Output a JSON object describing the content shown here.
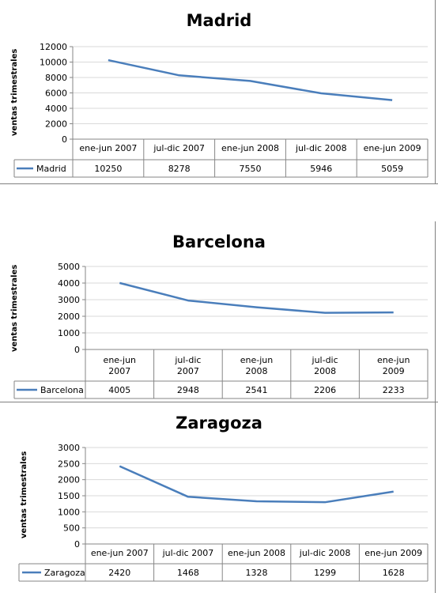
{
  "colors": {
    "line": "#4a7ebb",
    "axis": "#868686",
    "grid": "#d9d9d9"
  },
  "chart_data": [
    {
      "type": "line",
      "title": "Madrid",
      "ylabel": "ventas trimestrales",
      "categories": [
        "ene-jun 2007",
        "jul-dic 2007",
        "ene-jun 2008",
        "jul-dic 2008",
        "ene-jun 2009"
      ],
      "ylim": [
        0,
        12000
      ],
      "yticks": [
        0,
        2000,
        4000,
        6000,
        8000,
        10000,
        12000
      ],
      "series": [
        {
          "name": "Madrid",
          "values": [
            10250,
            8278,
            7550,
            5946,
            5059
          ]
        }
      ],
      "table_values": [
        "10250",
        "8278",
        "7550",
        "5946",
        "5059"
      ]
    },
    {
      "type": "line",
      "title": "Barcelona",
      "ylabel": "ventas trimestrales",
      "categories": [
        "ene-jun 2007",
        "jul-dic 2007",
        "ene-jun 2008",
        "jul-dic 2008",
        "ene-jun 2009"
      ],
      "ylim": [
        0,
        5000
      ],
      "yticks": [
        0,
        1000,
        2000,
        3000,
        4000,
        5000
      ],
      "series": [
        {
          "name": "Barcelona",
          "values": [
            4005,
            2948,
            2541,
            2206,
            2233
          ]
        }
      ],
      "table_values": [
        "4005",
        "2948",
        "2541",
        "2206",
        "2233"
      ]
    },
    {
      "type": "line",
      "title": "Zaragoza",
      "ylabel": "ventas trimestrales",
      "categories": [
        "ene-jun 2007",
        "jul-dic 2007",
        "ene-jun 2008",
        "jul-dic 2008",
        "ene-jun 2009"
      ],
      "ylim": [
        0,
        3000
      ],
      "yticks": [
        0,
        500,
        1000,
        1500,
        2000,
        2500,
        3000
      ],
      "series": [
        {
          "name": "Zaragoza",
          "values": [
            2420,
            1468,
            1328,
            1299,
            1628
          ]
        }
      ],
      "table_values": [
        "2420",
        "1468",
        "1328",
        "1299",
        "1628"
      ]
    }
  ]
}
